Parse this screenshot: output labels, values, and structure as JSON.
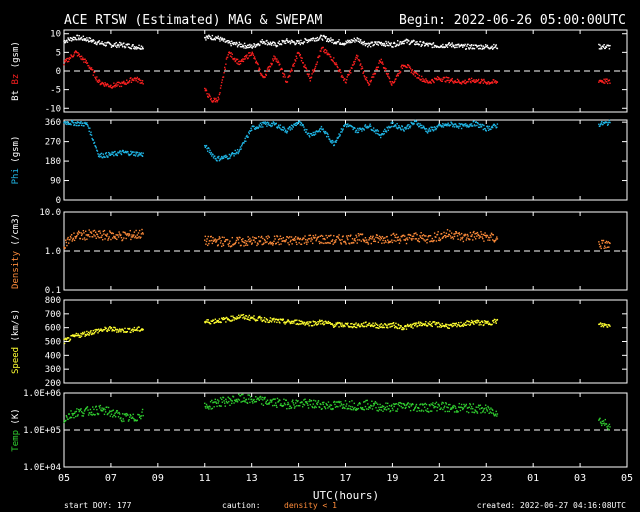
{
  "header": {
    "title": "ACE RTSW (Estimated) MAG & SWEPAM",
    "begin": "Begin: 2022-06-26 05:00:00UTC"
  },
  "footer": {
    "start_doy": "start DOY: 177",
    "caution": "caution:",
    "density_note": "density < 1",
    "created": "created: 2022-06-27 04:16:08UTC"
  },
  "x_axis": {
    "label": "UTC(hours)",
    "ticks": [
      "05",
      "07",
      "09",
      "11",
      "13",
      "15",
      "17",
      "19",
      "21",
      "23",
      "01",
      "03",
      "05"
    ]
  },
  "colors": {
    "bt": "#ffffff",
    "bz": "#ff2020",
    "phi": "#20b8e8",
    "density": "#ff8c3a",
    "speed": "#ffff30",
    "temp": "#30d030",
    "axes": "#ffffff",
    "dash": "#ffffff",
    "caution": "#ff8c3a"
  },
  "chart_data": [
    {
      "type": "scatter",
      "panel": "mag",
      "ylabel_parts": [
        "Bt",
        "Bz",
        "(gsm)"
      ],
      "ylim": [
        -11,
        11
      ],
      "yticks": [
        10,
        5,
        0,
        -5,
        -10
      ],
      "reference_line": 0,
      "gaps_hours": [
        [
          3.5,
          6.0
        ],
        [
          18.6,
          22.8
        ]
      ],
      "series": [
        {
          "name": "Bt",
          "x": [
            0.0,
            0.5,
            1.0,
            1.5,
            2.0,
            2.5,
            3.0,
            3.4,
            6.0,
            6.5,
            7.0,
            7.5,
            8.0,
            8.5,
            9.0,
            9.5,
            10.0,
            10.5,
            11.0,
            11.5,
            12.0,
            12.5,
            13.0,
            13.5,
            14.0,
            14.5,
            15.0,
            15.5,
            16.0,
            16.5,
            17.0,
            17.5,
            18.0,
            18.5,
            22.8,
            23.3
          ],
          "y": [
            8.0,
            9.0,
            8.5,
            7.5,
            7.0,
            7.0,
            6.5,
            6.5,
            9.0,
            9.0,
            7.5,
            7.0,
            6.5,
            8.0,
            7.0,
            8.0,
            7.5,
            8.5,
            9.0,
            8.0,
            7.5,
            8.5,
            7.0,
            7.5,
            7.0,
            8.0,
            7.5,
            7.0,
            6.8,
            7.0,
            6.5,
            6.5,
            6.5,
            6.5,
            6.5,
            6.5
          ]
        },
        {
          "name": "Bz",
          "x": [
            0.0,
            0.5,
            1.0,
            1.5,
            2.0,
            2.5,
            3.0,
            3.4,
            6.0,
            6.3,
            6.6,
            7.0,
            7.5,
            8.0,
            8.5,
            9.0,
            9.5,
            10.0,
            10.5,
            11.0,
            11.5,
            12.0,
            12.5,
            13.0,
            13.5,
            14.0,
            14.5,
            15.0,
            15.5,
            16.0,
            16.5,
            17.0,
            17.5,
            18.0,
            18.5,
            22.8,
            23.3
          ],
          "y": [
            2.0,
            5.0,
            2.0,
            -3.0,
            -4.0,
            -3.5,
            -2.0,
            -3.0,
            -5.0,
            -8.0,
            -7.5,
            5.0,
            2.0,
            5.0,
            -2.0,
            4.0,
            -3.0,
            5.0,
            -2.0,
            6.0,
            3.0,
            -3.0,
            4.0,
            -4.0,
            3.0,
            -3.5,
            2.0,
            -1.0,
            -3.0,
            -2.0,
            -2.5,
            -3.0,
            -2.5,
            -3.0,
            -3.0,
            -2.5,
            -3.0
          ]
        }
      ]
    },
    {
      "type": "scatter",
      "panel": "phi",
      "ylabel_parts": [
        "Phi",
        "(gsm)"
      ],
      "ylim": [
        0,
        370
      ],
      "yticks": [
        360,
        270,
        180,
        90,
        0
      ],
      "gaps_hours": [
        [
          3.5,
          6.0
        ],
        [
          18.6,
          22.8
        ]
      ],
      "series": [
        {
          "name": "Phi",
          "x": [
            0.0,
            0.5,
            1.0,
            1.5,
            2.0,
            2.5,
            3.0,
            3.4,
            6.0,
            6.5,
            7.0,
            7.5,
            8.0,
            8.5,
            9.0,
            9.5,
            10.0,
            10.5,
            11.0,
            11.5,
            12.0,
            12.5,
            13.0,
            13.5,
            14.0,
            14.5,
            15.0,
            15.5,
            16.0,
            16.5,
            17.0,
            17.5,
            18.0,
            18.5,
            22.8,
            23.3
          ],
          "y": [
            360,
            355,
            350,
            205,
            210,
            220,
            215,
            210,
            250,
            190,
            200,
            230,
            330,
            350,
            350,
            320,
            360,
            300,
            330,
            260,
            350,
            320,
            345,
            300,
            350,
            330,
            360,
            320,
            340,
            350,
            340,
            355,
            330,
            345,
            350,
            358
          ]
        }
      ]
    },
    {
      "type": "scatter",
      "panel": "density",
      "ylabel_parts": [
        "Density",
        "(/cm3)"
      ],
      "yscale": "log",
      "ylim": [
        0.1,
        10.0
      ],
      "yticks": [
        10.0,
        1.0,
        0.1
      ],
      "ytick_labels": [
        "10.0",
        "1.0",
        "0.1"
      ],
      "reference_line": 1.0,
      "gaps_hours": [
        [
          3.5,
          6.0
        ],
        [
          18.6,
          22.8
        ]
      ],
      "series": [
        {
          "name": "Density",
          "x": [
            0.0,
            0.5,
            1.0,
            1.5,
            2.0,
            2.5,
            3.0,
            3.4,
            6.0,
            6.5,
            7.0,
            7.5,
            8.0,
            8.5,
            9.0,
            9.5,
            10.0,
            10.5,
            11.0,
            11.5,
            12.0,
            12.5,
            13.0,
            13.5,
            14.0,
            14.5,
            15.0,
            15.5,
            16.0,
            16.5,
            17.0,
            17.5,
            18.0,
            18.5,
            22.8,
            23.3
          ],
          "y": [
            1.5,
            2.4,
            2.6,
            2.5,
            2.5,
            2.4,
            2.6,
            2.8,
            1.8,
            1.8,
            1.7,
            1.7,
            1.8,
            1.8,
            1.9,
            1.8,
            1.9,
            2.0,
            2.0,
            1.9,
            2.0,
            2.1,
            2.0,
            2.0,
            2.2,
            2.0,
            2.3,
            2.1,
            2.4,
            2.8,
            2.2,
            2.5,
            2.3,
            2.0,
            1.5,
            1.4
          ]
        }
      ]
    },
    {
      "type": "scatter",
      "panel": "speed",
      "ylabel_parts": [
        "Speed",
        "(km/s)"
      ],
      "ylim": [
        200,
        800
      ],
      "yticks": [
        800,
        700,
        600,
        500,
        400,
        300,
        200
      ],
      "gaps_hours": [
        [
          3.5,
          6.0
        ],
        [
          18.6,
          22.8
        ]
      ],
      "series": [
        {
          "name": "Speed",
          "x": [
            0.0,
            0.5,
            1.0,
            1.5,
            2.0,
            2.5,
            3.0,
            3.4,
            6.0,
            6.5,
            7.0,
            7.5,
            8.0,
            8.5,
            9.0,
            9.5,
            10.0,
            10.5,
            11.0,
            11.5,
            12.0,
            12.5,
            13.0,
            13.5,
            14.0,
            14.5,
            15.0,
            15.5,
            16.0,
            16.5,
            17.0,
            17.5,
            18.0,
            18.5,
            22.8,
            23.3
          ],
          "y": [
            500,
            540,
            560,
            580,
            590,
            580,
            585,
            590,
            640,
            650,
            660,
            680,
            670,
            660,
            650,
            640,
            640,
            630,
            640,
            620,
            620,
            615,
            625,
            610,
            620,
            600,
            620,
            630,
            620,
            610,
            625,
            640,
            630,
            650,
            620,
            615
          ]
        }
      ]
    },
    {
      "type": "scatter",
      "panel": "temp",
      "ylabel_parts": [
        "Temp",
        "(K)"
      ],
      "yscale": "log",
      "ylim": [
        10000,
        1000000
      ],
      "yticks": [
        1000000,
        100000,
        10000
      ],
      "ytick_labels": [
        "1.0E+06",
        "1.0E+05",
        "1.0E+04"
      ],
      "reference_line": 100000,
      "gaps_hours": [
        [
          3.5,
          6.0
        ],
        [
          18.6,
          22.8
        ]
      ],
      "series": [
        {
          "name": "Temp",
          "x": [
            0.0,
            0.5,
            1.0,
            1.5,
            2.0,
            2.5,
            3.0,
            3.4,
            6.0,
            6.5,
            7.0,
            7.5,
            8.0,
            8.5,
            9.0,
            9.5,
            10.0,
            10.5,
            11.0,
            11.5,
            12.0,
            12.5,
            13.0,
            13.5,
            14.0,
            14.5,
            15.0,
            15.5,
            16.0,
            16.5,
            17.0,
            17.5,
            18.0,
            18.5,
            22.8,
            23.3
          ],
          "y": [
            200000,
            300000,
            320000,
            350000,
            300000,
            220000,
            200000,
            300000,
            400000,
            550000,
            600000,
            700000,
            650000,
            600000,
            550000,
            500000,
            520000,
            500000,
            480000,
            450000,
            500000,
            450000,
            480000,
            420000,
            400000,
            450000,
            420000,
            400000,
            450000,
            380000,
            400000,
            380000,
            350000,
            300000,
            180000,
            130000
          ]
        }
      ]
    }
  ]
}
